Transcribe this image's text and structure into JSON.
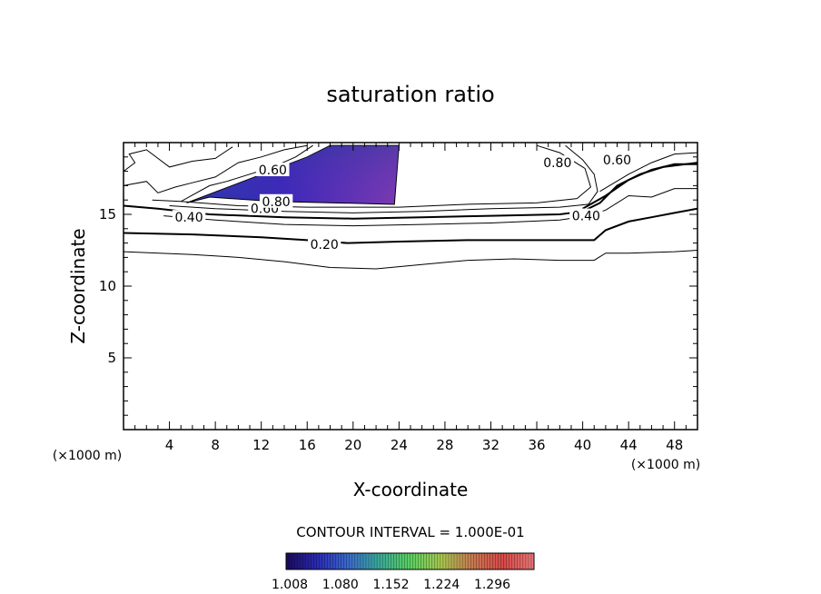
{
  "chart_data": {
    "type": "contour",
    "title": "saturation ratio",
    "xlabel": "X-coordinate",
    "ylabel": "Z-coordinate",
    "x_unit_label": "(×1000 m)",
    "y_unit_label": "(×1000 m)",
    "xlim": [
      0,
      50
    ],
    "ylim": [
      0,
      20
    ],
    "x_ticks": [
      4,
      8,
      12,
      16,
      20,
      24,
      28,
      32,
      36,
      40,
      44,
      48
    ],
    "y_ticks": [
      5,
      10,
      15
    ],
    "contour_interval_text": "CONTOUR INTERVAL = 1.000E-01",
    "contour_labels": [
      {
        "text": "0.20",
        "x": 17.5,
        "z": 12.9
      },
      {
        "text": "0.40",
        "x": 5.7,
        "z": 14.8
      },
      {
        "text": "0.40",
        "x": 40.3,
        "z": 14.9
      },
      {
        "text": "0.60",
        "x": 12.3,
        "z": 15.4
      },
      {
        "text": "0.80",
        "x": 13.3,
        "z": 15.9
      },
      {
        "text": "0.80",
        "x": 37.8,
        "z": 18.6
      },
      {
        "text": "0.60",
        "x": 43.0,
        "z": 18.8
      },
      {
        "text": "0.60",
        "x": 13.0,
        "z": 18.1
      }
    ],
    "supersaturated_region": {
      "description_levels": [
        1.008,
        1.296
      ],
      "polygon": [
        [
          5.5,
          15.8
        ],
        [
          16,
          19.0
        ],
        [
          18,
          19.8
        ],
        [
          24,
          19.8
        ],
        [
          23.6,
          15.7
        ],
        [
          13,
          15.9
        ],
        [
          7.5,
          16.2
        ]
      ]
    },
    "colorbar": {
      "min": 1.008,
      "max": 1.296,
      "tick_labels": [
        "1.008",
        "1.080",
        "1.152",
        "1.224",
        "1.296"
      ],
      "colors": [
        "#1a0a5a",
        "#2a2ab4",
        "#3a6acc",
        "#3aaa9a",
        "#5ad060",
        "#a8c850",
        "#c87a50",
        "#d84848",
        "#e87878"
      ]
    },
    "grid": false
  }
}
